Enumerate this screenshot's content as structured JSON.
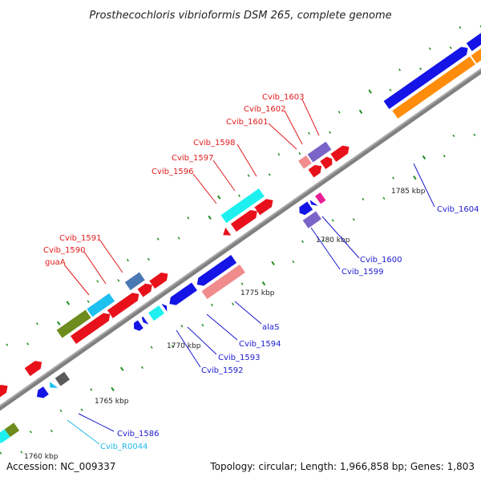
{
  "title": "Prosthecochloris vibrioformis DSM 265, complete genome",
  "accession": "Accession: NC_009337",
  "summary": "Topology: circular; Length: 1,966,858 bp; Genes: 1,803",
  "ruler": [
    "1760 kbp",
    "1765 kbp",
    "1770 kbp",
    "1775 kbp",
    "1780 kbp",
    "1785 kbp"
  ],
  "labels": {
    "cvib_1603": "Cvib_1603",
    "cvib_1602": "Cvib_1602",
    "cvib_1601": "Cvib_1601",
    "cvib_1598": "Cvib_1598",
    "cvib_1597": "Cvib_1597",
    "cvib_1596": "Cvib_1596",
    "cvib_1591": "Cvib_1591",
    "cvib_1590": "Cvib_1590",
    "guaA": "guaA",
    "cvib_1604": "Cvib_1604",
    "cvib_1600": "Cvib_1600",
    "cvib_1599": "Cvib_1599",
    "alaS": "alaS",
    "cvib_1594": "Cvib_1594",
    "cvib_1593": "Cvib_1593",
    "cvib_1592": "Cvib_1592",
    "cvib_1586": "Cvib_1586",
    "cvib_R0044": "Cvib_R0044"
  },
  "colors": {
    "red": "#e8101a",
    "blue": "#1414e6",
    "cyan": "#1ef0f0",
    "skyblue": "#1ec0f0",
    "orange": "#ff8c0a",
    "olive": "#6e8c1e",
    "steelblue": "#4a78b4",
    "lavender": "#7a64c8",
    "pink": "#f08c8c",
    "magenta": "#e81e96",
    "grey": "#5a5a5a",
    "lightgrey": "#b4b4b4",
    "tan": "#b4aa6e",
    "green": "#1e8c1e",
    "backbone": "#808080"
  }
}
